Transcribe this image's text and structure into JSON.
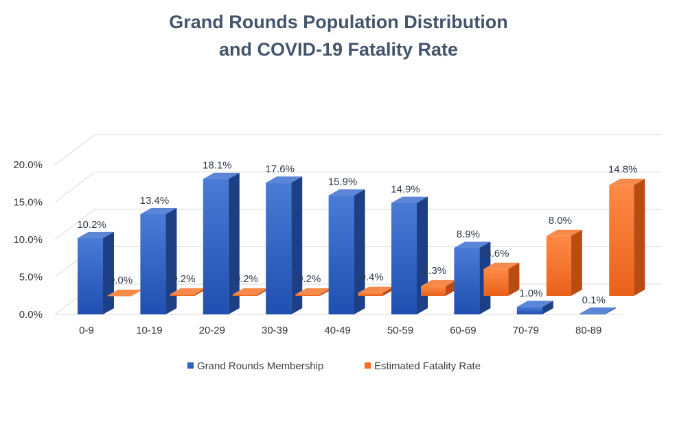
{
  "chart_data": {
    "type": "bar",
    "title_lines": [
      "Grand Rounds Population Distribution",
      "and COVID-19 Fatality Rate"
    ],
    "categories": [
      "0-9",
      "10-19",
      "20-29",
      "30-39",
      "40-49",
      "50-59",
      "60-69",
      "70-79",
      "80-89"
    ],
    "series": [
      {
        "name": "Grand Rounds Membership",
        "values": [
          10.2,
          13.4,
          18.1,
          17.6,
          15.9,
          14.9,
          8.9,
          1.0,
          0.1
        ],
        "labels": [
          "10.2%",
          "13.4%",
          "18.1%",
          "17.6%",
          "15.9%",
          "14.9%",
          "8.9%",
          "1.0%",
          "0.1%"
        ],
        "color": "#2e5fc1"
      },
      {
        "name": "Estimated Fatality Rate",
        "values": [
          0.0,
          0.2,
          0.2,
          0.2,
          0.4,
          1.3,
          3.6,
          8.0,
          14.8
        ],
        "labels": [
          "0.0%",
          "0.2%",
          "0.2%",
          "0.2%",
          "0.4%",
          "1.3%",
          "3.6%",
          "8.0%",
          "14.8%"
        ],
        "color": "#f26e22"
      }
    ],
    "y_ticks": [
      "0.0%",
      "5.0%",
      "10.0%",
      "15.0%",
      "20.0%"
    ],
    "ylim": [
      0,
      20
    ],
    "grid": true,
    "legend_position": "bottom",
    "style": "3d-clustered-column"
  }
}
